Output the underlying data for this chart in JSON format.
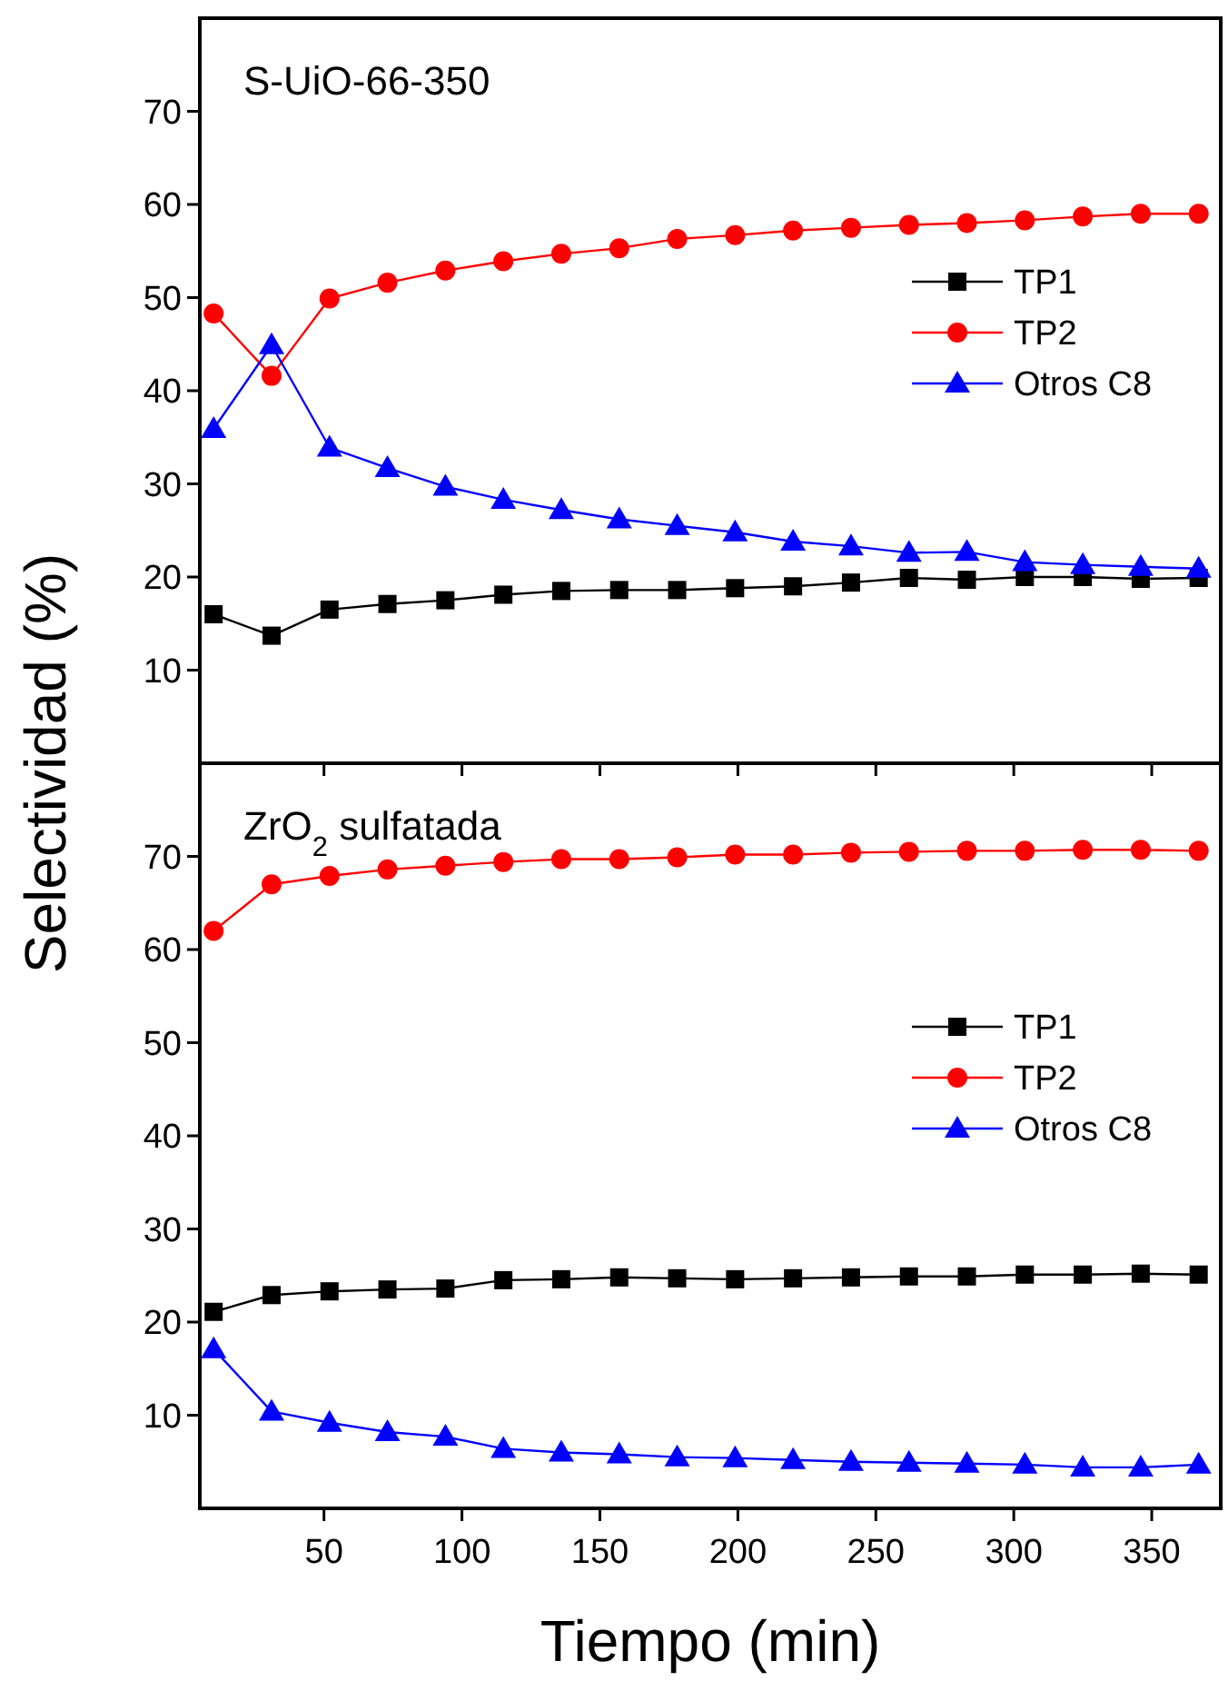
{
  "chart_data": [
    {
      "type": "line",
      "title": "S-UiO-66-350",
      "ylabel": "Selectividad (%)",
      "x": [
        10,
        31,
        52,
        73,
        94,
        115,
        136,
        157,
        178,
        199,
        220,
        241,
        262,
        283,
        304,
        325,
        346,
        367
      ],
      "xlim": [
        5,
        375
      ],
      "xticks": [
        50,
        100,
        150,
        200,
        250,
        300,
        350
      ],
      "ylim": [
        0,
        80
      ],
      "yticks": [
        10,
        20,
        30,
        40,
        50,
        60,
        70
      ],
      "tick_labels": "y",
      "legend": "right",
      "grid": false,
      "series": [
        {
          "name": "TP1",
          "color": "#000000",
          "marker": "square",
          "values": [
            16.0,
            13.7,
            16.5,
            17.1,
            17.5,
            18.1,
            18.5,
            18.6,
            18.6,
            18.8,
            19.0,
            19.4,
            19.9,
            19.7,
            20.0,
            20.0,
            19.8,
            19.9
          ]
        },
        {
          "name": "TP2",
          "color": "#ff0000",
          "marker": "circle",
          "values": [
            48.3,
            41.6,
            49.9,
            51.6,
            52.9,
            53.9,
            54.7,
            55.3,
            56.3,
            56.7,
            57.2,
            57.5,
            57.8,
            58.0,
            58.3,
            58.7,
            59.0,
            59.0
          ]
        },
        {
          "name": "Otros C8",
          "color": "#0000ff",
          "marker": "triangle",
          "values": [
            35.9,
            44.9,
            33.9,
            31.7,
            29.7,
            28.3,
            27.2,
            26.2,
            25.5,
            24.8,
            23.8,
            23.3,
            22.6,
            22.7,
            21.6,
            21.3,
            21.1,
            20.9
          ]
        }
      ]
    },
    {
      "type": "line",
      "title": "ZrO$_{2}$ sulfatada",
      "xlabel": "Tiempo (min)",
      "x": [
        10,
        31,
        52,
        73,
        94,
        115,
        136,
        157,
        178,
        199,
        220,
        241,
        262,
        283,
        304,
        325,
        346,
        367
      ],
      "xlim": [
        5,
        375
      ],
      "xticks": [
        50,
        100,
        150,
        200,
        250,
        300,
        350
      ],
      "ylim": [
        0,
        80
      ],
      "yticks": [
        10,
        20,
        30,
        40,
        50,
        60,
        70
      ],
      "legend": "right",
      "grid": false,
      "series": [
        {
          "name": "TP1",
          "color": "#000000",
          "marker": "square",
          "values": [
            21.1,
            22.9,
            23.3,
            23.5,
            23.6,
            24.5,
            24.6,
            24.8,
            24.7,
            24.6,
            24.7,
            24.8,
            24.9,
            24.9,
            25.1,
            25.1,
            25.2,
            25.1
          ]
        },
        {
          "name": "TP2",
          "color": "#ff0000",
          "marker": "circle",
          "values": [
            62.0,
            67.0,
            67.9,
            68.6,
            69.0,
            69.4,
            69.7,
            69.7,
            69.9,
            70.2,
            70.2,
            70.4,
            70.5,
            70.6,
            70.6,
            70.7,
            70.7,
            70.6
          ]
        },
        {
          "name": "Otros C8",
          "color": "#0000ff",
          "marker": "triangle",
          "values": [
            17.1,
            10.4,
            9.2,
            8.2,
            7.7,
            6.4,
            6.0,
            5.8,
            5.5,
            5.4,
            5.2,
            5.0,
            4.9,
            4.8,
            4.7,
            4.4,
            4.4,
            4.7
          ]
        }
      ]
    }
  ]
}
